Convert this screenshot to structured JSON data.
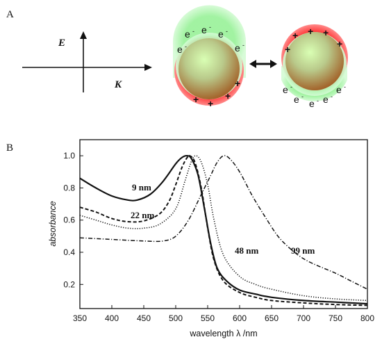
{
  "panel_a": {
    "label": "A",
    "field_label": "E",
    "wavevector_label": "K",
    "electron_symbol": "e",
    "electron_charge": "-",
    "positive_charge": "+",
    "colors": {
      "positive_cloud": "#ff1a1a",
      "electron_cloud": "#9af29a",
      "particle_core": "#b86a30",
      "particle_highlight": "#d8ffb0"
    }
  },
  "panel_b": {
    "label": "B",
    "x_axis_title": "wavelength λ /nm",
    "y_axis_title": "absorbance",
    "curve_labels": {
      "nm9": "9 nm",
      "nm22": "22 nm",
      "nm48": "48 nm",
      "nm99": "99 nm"
    }
  },
  "chart_data": {
    "type": "line",
    "xlabel": "wavelength λ /nm",
    "ylabel": "absorbance",
    "xlim": [
      350,
      800
    ],
    "ylim": [
      0.05,
      1.1
    ],
    "x_ticks": [
      350,
      400,
      450,
      500,
      550,
      600,
      650,
      700,
      750,
      800
    ],
    "y_ticks": [
      0.2,
      0.4,
      0.6,
      0.8,
      1.0
    ],
    "series": [
      {
        "name": "9 nm",
        "style": "solid",
        "points": [
          [
            350,
            0.86
          ],
          [
            375,
            0.8
          ],
          [
            400,
            0.75
          ],
          [
            425,
            0.725
          ],
          [
            440,
            0.725
          ],
          [
            460,
            0.76
          ],
          [
            480,
            0.84
          ],
          [
            500,
            0.95
          ],
          [
            510,
            0.99
          ],
          [
            518,
            1.0
          ],
          [
            525,
            0.98
          ],
          [
            535,
            0.88
          ],
          [
            545,
            0.67
          ],
          [
            555,
            0.45
          ],
          [
            565,
            0.3
          ],
          [
            580,
            0.22
          ],
          [
            600,
            0.165
          ],
          [
            625,
            0.14
          ],
          [
            650,
            0.12
          ],
          [
            700,
            0.1
          ],
          [
            750,
            0.09
          ],
          [
            800,
            0.08
          ]
        ]
      },
      {
        "name": "22 nm",
        "style": "dashed",
        "points": [
          [
            350,
            0.68
          ],
          [
            375,
            0.65
          ],
          [
            400,
            0.61
          ],
          [
            425,
            0.59
          ],
          [
            450,
            0.595
          ],
          [
            475,
            0.64
          ],
          [
            490,
            0.72
          ],
          [
            500,
            0.82
          ],
          [
            510,
            0.93
          ],
          [
            518,
            0.99
          ],
          [
            522,
            1.0
          ],
          [
            530,
            0.96
          ],
          [
            540,
            0.8
          ],
          [
            550,
            0.55
          ],
          [
            560,
            0.35
          ],
          [
            575,
            0.22
          ],
          [
            600,
            0.15
          ],
          [
            625,
            0.12
          ],
          [
            650,
            0.1
          ],
          [
            700,
            0.085
          ],
          [
            750,
            0.075
          ],
          [
            800,
            0.07
          ]
        ]
      },
      {
        "name": "48 nm",
        "style": "dotted",
        "points": [
          [
            350,
            0.63
          ],
          [
            375,
            0.6
          ],
          [
            400,
            0.57
          ],
          [
            425,
            0.55
          ],
          [
            450,
            0.55
          ],
          [
            475,
            0.575
          ],
          [
            500,
            0.67
          ],
          [
            515,
            0.85
          ],
          [
            525,
            0.97
          ],
          [
            532,
            1.0
          ],
          [
            540,
            0.96
          ],
          [
            550,
            0.82
          ],
          [
            560,
            0.6
          ],
          [
            575,
            0.38
          ],
          [
            600,
            0.25
          ],
          [
            625,
            0.2
          ],
          [
            650,
            0.17
          ],
          [
            700,
            0.13
          ],
          [
            750,
            0.11
          ],
          [
            800,
            0.1
          ]
        ]
      },
      {
        "name": "99 nm",
        "style": "dash-dot",
        "points": [
          [
            350,
            0.49
          ],
          [
            400,
            0.48
          ],
          [
            450,
            0.47
          ],
          [
            480,
            0.47
          ],
          [
            500,
            0.5
          ],
          [
            520,
            0.6
          ],
          [
            540,
            0.76
          ],
          [
            555,
            0.88
          ],
          [
            565,
            0.96
          ],
          [
            575,
            1.0
          ],
          [
            585,
            0.98
          ],
          [
            600,
            0.9
          ],
          [
            620,
            0.75
          ],
          [
            640,
            0.62
          ],
          [
            660,
            0.5
          ],
          [
            680,
            0.42
          ],
          [
            700,
            0.36
          ],
          [
            720,
            0.32
          ],
          [
            750,
            0.27
          ],
          [
            775,
            0.22
          ],
          [
            800,
            0.17
          ]
        ]
      }
    ]
  }
}
